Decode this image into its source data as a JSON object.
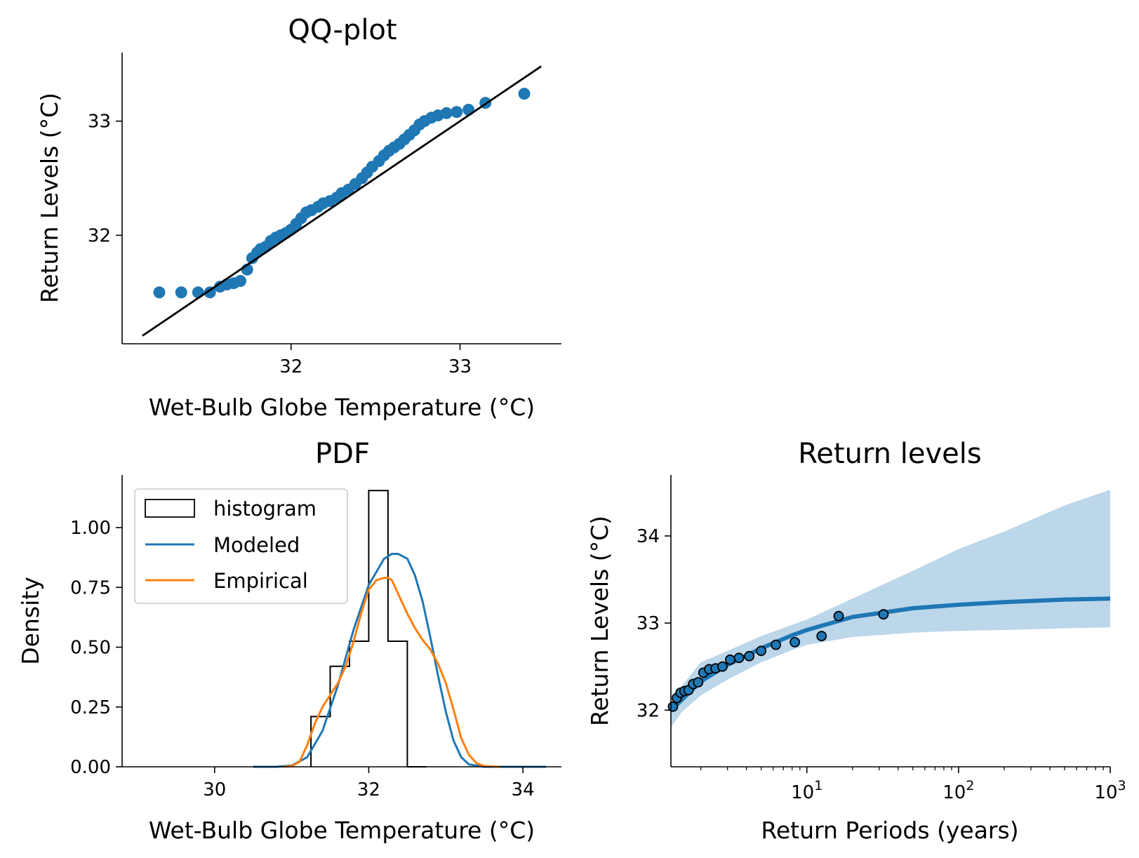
{
  "colors": {
    "blue": "#1f77b4",
    "orange": "#ff7f0e",
    "black": "#000000",
    "band": "#bcd6ea"
  },
  "chart_data": [
    {
      "id": "qq",
      "type": "scatter",
      "title": "QQ-plot",
      "xlabel": "Wet-Bulb Globe Temperature (°C)",
      "ylabel": "Return Levels (°C)",
      "xlim": [
        31.0,
        33.6
      ],
      "ylim": [
        31.05,
        33.6
      ],
      "xticks": [
        32,
        33
      ],
      "yticks": [
        32,
        33
      ],
      "xtick_labels": [
        "32",
        "33"
      ],
      "ytick_labels": [
        "32",
        "33"
      ],
      "line": {
        "x": [
          31.12,
          33.48
        ],
        "y": [
          31.12,
          33.48
        ]
      },
      "points": {
        "x": [
          31.22,
          31.35,
          31.45,
          31.52,
          31.58,
          31.62,
          31.66,
          31.7,
          31.74,
          31.77,
          31.8,
          31.82,
          31.85,
          31.88,
          31.91,
          31.94,
          31.97,
          32.0,
          32.03,
          32.06,
          32.09,
          32.12,
          32.16,
          32.19,
          32.23,
          32.27,
          32.3,
          32.34,
          32.38,
          32.42,
          32.45,
          32.48,
          32.52,
          32.55,
          32.58,
          32.61,
          32.64,
          32.67,
          32.7,
          32.73,
          32.76,
          32.79,
          32.83,
          32.87,
          32.92,
          32.98,
          33.05,
          33.15,
          33.38
        ],
        "y": [
          31.5,
          31.5,
          31.5,
          31.5,
          31.55,
          31.57,
          31.58,
          31.6,
          31.7,
          31.8,
          31.85,
          31.88,
          31.9,
          31.95,
          31.98,
          32.0,
          32.02,
          32.05,
          32.1,
          32.15,
          32.2,
          32.22,
          32.25,
          32.28,
          32.3,
          32.33,
          32.37,
          32.4,
          32.45,
          32.5,
          32.55,
          32.6,
          32.65,
          32.7,
          32.74,
          32.77,
          32.8,
          32.84,
          32.88,
          32.92,
          32.97,
          33.0,
          33.03,
          33.05,
          33.07,
          33.08,
          33.1,
          33.16,
          33.24
        ]
      }
    },
    {
      "id": "pdf",
      "type": "bar",
      "title": "PDF",
      "xlabel": "Wet-Bulb Globe Temperature (°C)",
      "ylabel": "Density",
      "xlim": [
        28.8,
        34.5
      ],
      "ylim": [
        0,
        1.22
      ],
      "xticks": [
        30,
        32,
        34
      ],
      "yticks": [
        0,
        0.25,
        0.5,
        0.75,
        1.0
      ],
      "xtick_labels": [
        "30",
        "32",
        "34"
      ],
      "ytick_labels": [
        "0.00",
        "0.25",
        "0.50",
        "0.75",
        "1.00"
      ],
      "legend": [
        "histogram",
        "Modeled",
        "Empirical"
      ],
      "legend_position": "upper-left",
      "histogram": {
        "edges": [
          31.25,
          31.5,
          31.75,
          32.0,
          32.25,
          32.5,
          32.75
        ],
        "heights": [
          0.21,
          0.42,
          0.525,
          1.155,
          0.525,
          0.0
        ]
      },
      "modeled": {
        "x": [
          30.5,
          30.8,
          31.0,
          31.2,
          31.4,
          31.6,
          31.8,
          32.0,
          32.2,
          32.3,
          32.38,
          32.5,
          32.6,
          32.7,
          32.8,
          32.9,
          33.0,
          33.1,
          33.2,
          33.3,
          33.5,
          34.0,
          34.3
        ],
        "y": [
          0.0,
          0.0,
          0.005,
          0.04,
          0.15,
          0.34,
          0.57,
          0.76,
          0.87,
          0.89,
          0.89,
          0.87,
          0.8,
          0.69,
          0.54,
          0.38,
          0.23,
          0.11,
          0.04,
          0.01,
          0.0,
          0.0,
          0.0
        ]
      },
      "empirical": {
        "x": [
          30.9,
          31.0,
          31.1,
          31.2,
          31.3,
          31.4,
          31.5,
          31.6,
          31.7,
          31.8,
          31.9,
          32.0,
          32.1,
          32.2,
          32.25,
          32.3,
          32.4,
          32.5,
          32.6,
          32.7,
          32.8,
          32.9,
          33.0,
          33.1,
          33.2,
          33.3,
          33.4,
          33.5,
          33.7
        ],
        "y": [
          0.0,
          0.003,
          0.02,
          0.09,
          0.18,
          0.25,
          0.3,
          0.35,
          0.42,
          0.52,
          0.64,
          0.74,
          0.78,
          0.79,
          0.79,
          0.78,
          0.71,
          0.64,
          0.58,
          0.53,
          0.49,
          0.43,
          0.35,
          0.24,
          0.12,
          0.05,
          0.015,
          0.003,
          0.0
        ]
      }
    },
    {
      "id": "return-levels",
      "type": "line",
      "title": "Return levels",
      "xlabel": "Return Periods (years)",
      "ylabel": "Return Levels (°C)",
      "xscale": "log",
      "xlim": [
        1.27,
        1000
      ],
      "ylim": [
        31.35,
        34.7
      ],
      "xticks": [
        10,
        100,
        1000
      ],
      "xtick_labels": [
        "10",
        "10",
        "10"
      ],
      "xtick_exponents": [
        "1",
        "2",
        "3"
      ],
      "yticks": [
        32,
        33,
        34
      ],
      "ytick_labels": [
        "32",
        "33",
        "34"
      ],
      "fit": {
        "x": [
          1.27,
          1.5,
          2,
          3,
          5,
          8,
          10,
          20,
          50,
          100,
          200,
          500,
          1000
        ],
        "y": [
          32.0,
          32.12,
          32.33,
          32.52,
          32.71,
          32.86,
          32.92,
          33.07,
          33.17,
          33.21,
          33.24,
          33.27,
          33.28
        ]
      },
      "band": {
        "x": [
          1.27,
          1.5,
          2,
          3,
          5,
          8,
          10,
          20,
          50,
          100,
          200,
          500,
          1000
        ],
        "lower": [
          31.8,
          31.98,
          32.17,
          32.35,
          32.55,
          32.69,
          32.75,
          32.84,
          32.89,
          32.91,
          32.92,
          32.94,
          32.95
        ],
        "upper": [
          32.1,
          32.28,
          32.55,
          32.68,
          32.85,
          32.98,
          33.04,
          33.28,
          33.6,
          33.85,
          34.05,
          34.35,
          34.53
        ]
      },
      "points": {
        "x": [
          1.31,
          1.39,
          1.47,
          1.56,
          1.66,
          1.78,
          1.92,
          2.08,
          2.27,
          2.5,
          2.78,
          3.12,
          3.57,
          4.17,
          5.0,
          6.25,
          8.33,
          12.5,
          16.2,
          32.0
        ],
        "y": [
          32.04,
          32.14,
          32.2,
          32.22,
          32.23,
          32.3,
          32.32,
          32.43,
          32.47,
          32.48,
          32.5,
          32.58,
          32.6,
          32.62,
          32.68,
          32.75,
          32.78,
          32.85,
          33.08,
          33.1
        ]
      }
    }
  ]
}
